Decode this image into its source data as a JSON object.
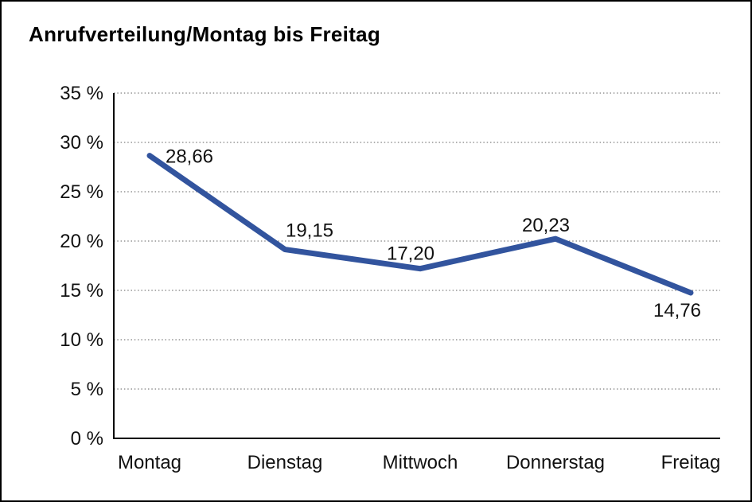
{
  "title": "Anrufverteilung/Montag bis Freitag",
  "colors": {
    "background": "#ffffff",
    "frame_border": "#000000",
    "axis": "#000000",
    "grid": "#7f7f7f",
    "text": "#111111",
    "line": "#32549E"
  },
  "chart_data": {
    "type": "line",
    "title": "Anrufverteilung/Montag bis Freitag",
    "categories": [
      "Montag",
      "Dienstag",
      "Mittwoch",
      "Donnerstag",
      "Freitag"
    ],
    "values": [
      28.66,
      19.15,
      17.2,
      20.23,
      14.76
    ],
    "value_labels": [
      "28,66",
      "19,15",
      "17,20",
      "20,23",
      "14,76"
    ],
    "xlabel": "",
    "ylabel": "",
    "ylim": [
      0,
      35
    ],
    "ytick_step": 5,
    "ytick_labels": [
      "0 %",
      "5 %",
      "10 %",
      "15 %",
      "20 %",
      "25 %",
      "30 %",
      "35 %"
    ],
    "grid": "horizontal-dotted",
    "legend_position": "none",
    "line_color": "#32549E"
  }
}
